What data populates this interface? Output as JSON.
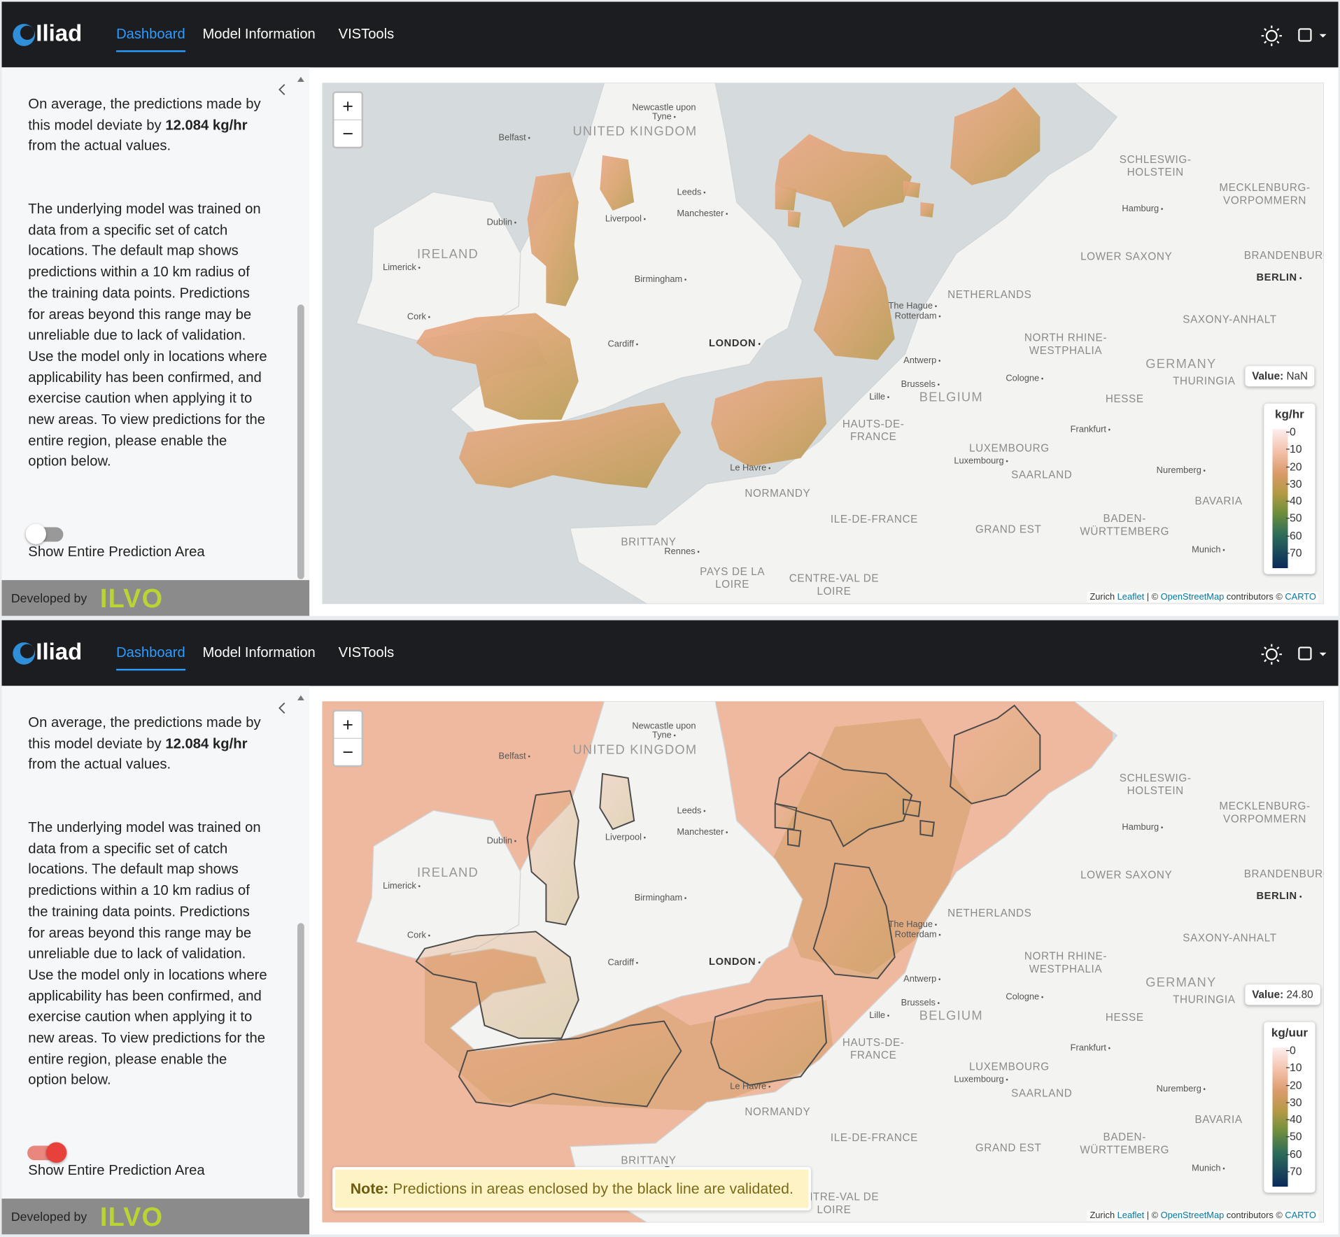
{
  "map_labels": [
    {
      "text": "UNITED KINGDOM",
      "kind": "country"
    },
    {
      "text": "Newcastle upon Tyne",
      "kind": "city"
    },
    {
      "text": "Belfast",
      "kind": "city"
    },
    {
      "text": "Leeds",
      "kind": "city"
    },
    {
      "text": "Manchester",
      "kind": "city"
    },
    {
      "text": "Liverpool",
      "kind": "city"
    },
    {
      "text": "Dublin",
      "kind": "city"
    },
    {
      "text": "IRELAND",
      "kind": "country"
    },
    {
      "text": "Limerick",
      "kind": "city"
    },
    {
      "text": "Birmingham",
      "kind": "city"
    },
    {
      "text": "Cork",
      "kind": "city"
    },
    {
      "text": "Cardiff",
      "kind": "city"
    },
    {
      "text": "LONDON",
      "kind": "capital"
    },
    {
      "text": "SCHLESWIG-HOLSTEIN",
      "kind": "region"
    },
    {
      "text": "MECKLENBURG-VORPOMMERN",
      "kind": "region"
    },
    {
      "text": "Hamburg",
      "kind": "city"
    },
    {
      "text": "LOWER SAXONY",
      "kind": "region"
    },
    {
      "text": "BRANDENBURG",
      "kind": "region"
    },
    {
      "text": "BERLIN",
      "kind": "capital"
    },
    {
      "text": "The Hague",
      "kind": "city"
    },
    {
      "text": "Rotterdam",
      "kind": "city"
    },
    {
      "text": "NETHERLANDS",
      "kind": "region"
    },
    {
      "text": "SAXONY-ANHALT",
      "kind": "region"
    },
    {
      "text": "NORTH RHINE-WESTPHALIA",
      "kind": "region"
    },
    {
      "text": "Antwerp",
      "kind": "city"
    },
    {
      "text": "GERMANY",
      "kind": "country"
    },
    {
      "text": "THURINGIA",
      "kind": "region"
    },
    {
      "text": "Cologne",
      "kind": "city"
    },
    {
      "text": "Brussels",
      "kind": "city"
    },
    {
      "text": "Lille",
      "kind": "city"
    },
    {
      "text": "BELGIUM",
      "kind": "country"
    },
    {
      "text": "HESSE",
      "kind": "region"
    },
    {
      "text": "HAUTS-DE-FRANCE",
      "kind": "region"
    },
    {
      "text": "Frankfurt",
      "kind": "city"
    },
    {
      "text": "LUXEMBOURG",
      "kind": "region"
    },
    {
      "text": "Luxembourg",
      "kind": "city"
    },
    {
      "text": "Le Havre",
      "kind": "city"
    },
    {
      "text": "SAARLAND",
      "kind": "region"
    },
    {
      "text": "Nuremberg",
      "kind": "city"
    },
    {
      "text": "NORMANDY",
      "kind": "region"
    },
    {
      "text": "BAVARIA",
      "kind": "region"
    },
    {
      "text": "ILE-DE-FRANCE",
      "kind": "region"
    },
    {
      "text": "BADEN-WÜRTTEMBERG",
      "kind": "region"
    },
    {
      "text": "GRAND EST",
      "kind": "region"
    },
    {
      "text": "BRITTANY",
      "kind": "region"
    },
    {
      "text": "Rennes",
      "kind": "city"
    },
    {
      "text": "Munich",
      "kind": "city"
    },
    {
      "text": "PAYS DE LA LOIRE",
      "kind": "region"
    },
    {
      "text": "CENTRE-VAL DE LOIRE",
      "kind": "region"
    }
  ],
  "panels": [
    {
      "nav": {
        "brand": "Iliad",
        "links": [
          "Dashboard",
          "Model Information",
          "VISTools"
        ]
      },
      "sidebar": {
        "intro": [
          {
            "text": "On average, the predictions made by this model deviate by ",
            "bold": false
          },
          {
            "text": "12.084 kg/hr",
            "bold": true
          },
          {
            "text": " from the actual values.",
            "bold": false
          }
        ],
        "body": "The underlying model was trained on data from a specific set of catch locations. The default map shows predictions within a 10 km radius of the training data points. Predictions for areas beyond this range may be unreliable due to lack of validation. Use the model only in locations where applicability has been confirmed, and exercise caution when applying it to new areas. To view predictions for the entire region, please enable the option below.",
        "toggle_label": "Show Entire Prediction Area",
        "toggle_on": false,
        "footer": {
          "developed_by": "Developed by",
          "org": "ILVO"
        }
      },
      "map": {
        "zoom_in": "+",
        "zoom_out": "−",
        "value_box": {
          "label": "Value:",
          "value": "NaN"
        },
        "legend": {
          "unit": "kg/hr",
          "ticks": [
            0,
            10,
            20,
            30,
            40,
            50,
            60,
            70
          ]
        },
        "attribution": [
          "Zurich",
          "Leaflet",
          "| ©",
          "OpenStreetMap",
          "contributors ©",
          "CARTO"
        ]
      }
    },
    {
      "nav": {
        "brand": "Iliad",
        "links": [
          "Dashboard",
          "Model Information",
          "VISTools"
        ]
      },
      "sidebar": {
        "intro": [
          {
            "text": "On average, the predictions made by this model deviate by ",
            "bold": false
          },
          {
            "text": "12.084 kg/hr",
            "bold": true
          },
          {
            "text": " from the actual values.",
            "bold": false
          }
        ],
        "body": "The underlying model was trained on data from a specific set of catch locations. The default map shows predictions within a 10 km radius of the training data points. Predictions for areas beyond this range may be unreliable due to lack of validation. Use the model only in locations where applicability has been confirmed, and exercise caution when applying it to new areas. To view predictions for the entire region, please enable the option below.",
        "toggle_label": "Show Entire Prediction Area",
        "toggle_on": true,
        "footer": {
          "developed_by": "Developed by",
          "org": "ILVO"
        }
      },
      "map": {
        "zoom_in": "+",
        "zoom_out": "−",
        "value_box": {
          "label": "Value:",
          "value": "24.80"
        },
        "legend": {
          "unit": "kg/uur",
          "ticks": [
            0,
            10,
            20,
            30,
            40,
            50,
            60,
            70
          ]
        },
        "attribution": [
          "Zurich",
          "Leaflet",
          "| ©",
          "OpenStreetMap",
          "contributors ©",
          "CARTO"
        ],
        "note": {
          "label": "Note:",
          "text": "Predictions in areas enclosed by the black line are validated."
        }
      }
    }
  ]
}
